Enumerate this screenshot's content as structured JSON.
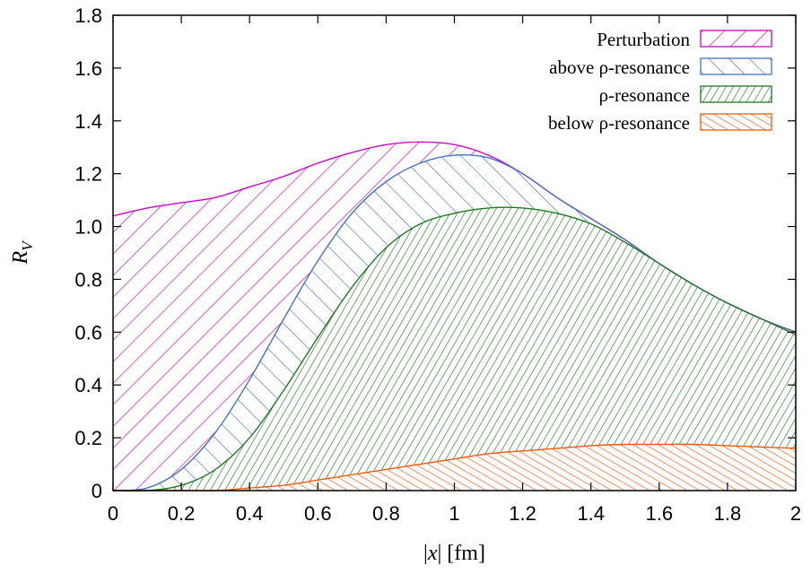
{
  "chart_data": {
    "type": "area",
    "xlabel": "|x| [fm]",
    "ylabel": "R_V",
    "xlim": [
      0,
      2
    ],
    "ylim": [
      0,
      1.8
    ],
    "xticks": [
      "0",
      "0.2",
      "0.4",
      "0.6",
      "0.8",
      "1",
      "1.2",
      "1.4",
      "1.6",
      "1.8",
      "2"
    ],
    "yticks": [
      "0",
      "0.2",
      "0.4",
      "0.6",
      "0.8",
      "1.0",
      "1.2",
      "1.4",
      "1.6",
      "1.8"
    ],
    "legend_position": "top-right",
    "grid": false,
    "x": [
      0,
      0.1,
      0.2,
      0.3,
      0.4,
      0.5,
      0.6,
      0.7,
      0.8,
      0.9,
      1.0,
      1.1,
      1.2,
      1.3,
      1.4,
      1.5,
      1.6,
      1.7,
      1.8,
      1.9,
      2.0
    ],
    "series": [
      {
        "name": "Perturbation",
        "color": "#cc00cc",
        "values": [
          1.04,
          1.07,
          1.09,
          1.11,
          1.15,
          1.19,
          1.24,
          1.28,
          1.31,
          1.32,
          1.31,
          1.27,
          1.2,
          1.11,
          1.03,
          0.95,
          0.86,
          0.78,
          0.71,
          0.65,
          0.6
        ]
      },
      {
        "name": "above ρ-resonance",
        "color": "#4472c4",
        "values": [
          0.0,
          0.01,
          0.08,
          0.22,
          0.42,
          0.65,
          0.87,
          1.05,
          1.17,
          1.24,
          1.27,
          1.26,
          1.2,
          1.11,
          1.03,
          0.95,
          0.86,
          0.78,
          0.71,
          0.65,
          0.6
        ]
      },
      {
        "name": "ρ-resonance",
        "color": "#1e7b1e",
        "values": [
          0.0,
          0.0,
          0.02,
          0.08,
          0.2,
          0.38,
          0.58,
          0.77,
          0.92,
          1.01,
          1.05,
          1.07,
          1.07,
          1.05,
          1.01,
          0.94,
          0.86,
          0.78,
          0.71,
          0.65,
          0.59
        ]
      },
      {
        "name": "below ρ-resonance",
        "color": "#f05a0a",
        "values": [
          0.0,
          0.0,
          0.0,
          0.0,
          0.01,
          0.02,
          0.04,
          0.06,
          0.08,
          0.1,
          0.12,
          0.14,
          0.15,
          0.16,
          0.17,
          0.175,
          0.175,
          0.175,
          0.17,
          0.165,
          0.16
        ]
      }
    ]
  }
}
